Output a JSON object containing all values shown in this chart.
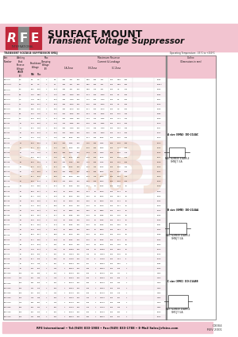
{
  "title": "SURFACE MOUNT",
  "subtitle": "Transient Voltage Suppressor",
  "header_bg": "#f2c4d0",
  "footer_text": "RFE International • Tel:(949) 833-1988 • Fax:(949) 833-1788 • E-Mail Sales@rfeinc.com",
  "footer_right1": "C3004",
  "footer_right2": "REV 2001",
  "note_text": "Operating Temperature: -55°C to +150°C",
  "outline_text": "Outline\n(Dimensions in mm)",
  "part_a_label": "A size (SMA)  DO-214AC",
  "part_b_label": "B size (SMB)  DO-214AA",
  "part_c_label": "C size (SMC)  DO-214AB",
  "part_example_label": "PART NUMBER EXAMPLE",
  "part_a_example": "SMBJ7.5A",
  "part_b_example": "SMBJ7.5A",
  "part_c_example": "SMCJ7.5A",
  "bg": "#ffffff",
  "pink": "#f2c4d0",
  "table_title": "TRANSIENT VOLTAGE SUPPRESSOR SMAJ",
  "col_header_pink": "#f2c4d0",
  "rows": [
    [
      "SMAJ5.0",
      "5.0",
      "5.8",
      "7.0",
      "1",
      "9.6",
      "285",
      "800",
      "300",
      "8.55",
      "280",
      "800",
      "300",
      "6.63",
      "280",
      "520",
      "0005"
    ],
    [
      "SMAJ5.0A",
      "5.0",
      "5.8",
      "7.0",
      "1",
      "9.2",
      "285",
      "800",
      "300",
      "8.55",
      "280",
      "800",
      "300",
      "6.63",
      "280",
      "520",
      "0005A"
    ],
    [
      "SMAJ6.0",
      "6.0",
      "6.67",
      "8.15",
      "1",
      "10.3",
      "285",
      "960",
      "300",
      "9.58",
      "270",
      "960",
      "300",
      "7.5",
      "270",
      "625",
      "0006"
    ],
    [
      "SMAJ6.5",
      "6.5",
      "7.22",
      "8.82",
      "1",
      "11.2",
      "285",
      "1050",
      "300",
      "10.4",
      "265",
      "1050",
      "300",
      "8.1",
      "265",
      "680",
      "0065"
    ],
    [
      "SMAJ7.0",
      "7.0",
      "7.78",
      "9.51",
      "1",
      "12.0",
      "285",
      "1120",
      "300",
      "11.2",
      "260",
      "1120",
      "300",
      "8.7",
      "260",
      "730",
      "0007"
    ],
    [
      "SMAJ7.5",
      "7.5",
      "8.33",
      "10.2",
      "1",
      "12.9",
      "285",
      "1200",
      "300",
      "12.0",
      "255",
      "1200",
      "300",
      "9.4",
      "255",
      "785",
      "0075"
    ],
    [
      "SMAJ8.0",
      "8.0",
      "8.89",
      "10.9",
      "1",
      "13.6",
      "280",
      "1270",
      "300",
      "12.7",
      "250",
      "1270",
      "300",
      "9.9",
      "250",
      "835",
      "0008"
    ],
    [
      "SMAJ8.5",
      "8.5",
      "9.44",
      "11.6",
      "1",
      "14.4",
      "260",
      "1345",
      "300",
      "13.4",
      "245",
      "1345",
      "300",
      "10.5",
      "245",
      "890",
      "0085"
    ],
    [
      "SMAJ9.0",
      "9.0",
      "10.0",
      "12.3",
      "1",
      "15.4",
      "260",
      "1435",
      "300",
      "14.3",
      "240",
      "1435",
      "300",
      "11.1",
      "240",
      "945",
      "0009"
    ],
    [
      "SMAJ10",
      "10",
      "11.1",
      "13.6",
      "1",
      "17.0",
      "240",
      "1585",
      "300",
      "15.8",
      "225",
      "1585",
      "300",
      "12.3",
      "225",
      "1050",
      "0010"
    ],
    [
      "SMAJ11",
      "11",
      "12.2",
      "14.9",
      "1",
      "18.2",
      "230",
      "1700",
      "300",
      "17.0",
      "215",
      "1700",
      "300",
      "13.2",
      "215",
      "1150",
      "0011"
    ],
    [
      "SMAJ12",
      "12",
      "13.3",
      "16.3",
      "1",
      "19.9",
      "220",
      "1860",
      "300",
      "18.5",
      "205",
      "1860",
      "300",
      "14.4",
      "205",
      "1255",
      "0012"
    ],
    [
      "SMAJ13",
      "13",
      "14.4",
      "17.6",
      "1",
      "21.5",
      "210",
      "2005",
      "300",
      "20.1",
      "195",
      "2005",
      "300",
      "15.6",
      "195",
      "1360",
      "0013"
    ],
    [
      "SMAJ14",
      "14",
      "15.6",
      "19.1",
      "1",
      "23.2",
      "200",
      "2165",
      "300",
      "21.6",
      "190",
      "2165",
      "300",
      "16.8",
      "190",
      "1465",
      "0014"
    ],
    [
      "SMAJ15",
      "15",
      "16.7",
      "20.4",
      "1",
      "24.4",
      "195",
      "2280",
      "300",
      "22.8",
      "185",
      "2280",
      "300",
      "17.7",
      "185",
      "1550",
      "0015"
    ],
    [
      "SMAJ16",
      "16",
      "17.8",
      "21.8",
      "1",
      "26.0",
      "180",
      "2430",
      "300",
      "24.3",
      "175",
      "2430",
      "300",
      "18.9",
      "175",
      "1655",
      "0016"
    ],
    [
      "SMAJ17",
      "17",
      "18.9",
      "23.1",
      "1",
      "27.6",
      "165",
      "2575",
      "300",
      "25.8",
      "165",
      "2575",
      "300",
      "20.0",
      "165",
      "1755",
      "0017"
    ],
    [
      "SMAJ18",
      "18",
      "20.0",
      "24.4",
      "1",
      "29.2",
      "160",
      "2725",
      "300",
      "27.2",
      "155",
      "2725",
      "300",
      "21.2",
      "155",
      "1855",
      "0018"
    ],
    [
      "SMAJ20",
      "20",
      "22.2",
      "27.1",
      "1",
      "32.4",
      "145",
      "3025",
      "300",
      "30.2",
      "140",
      "3025",
      "300",
      "23.5",
      "140",
      "2060",
      "0020"
    ],
    [
      "SMAJ22",
      "22",
      "24.4",
      "29.8",
      "1",
      "35.5",
      "130",
      "3315",
      "300",
      "33.1",
      "125",
      "3315",
      "300",
      "25.8",
      "125",
      "2260",
      "0022"
    ],
    [
      "SMAJ24",
      "24",
      "26.7",
      "32.6",
      "1",
      "38.9",
      "115",
      "3630",
      "300",
      "36.2",
      "115",
      "3630",
      "300",
      "28.2",
      "115",
      "2465",
      "0024"
    ],
    [
      "SMAJ26",
      "26",
      "28.9",
      "35.3",
      "1",
      "42.1",
      "105",
      "3930",
      "300",
      "39.2",
      "105",
      "3930",
      "300",
      "30.5",
      "105",
      "2670",
      "0026"
    ],
    [
      "SMAJ28",
      "28",
      "31.1",
      "38.0",
      "1",
      "45.4",
      "95",
      "4235",
      "300",
      "42.2",
      "95",
      "4235",
      "300",
      "32.9",
      "95",
      "2875",
      "0028"
    ],
    [
      "SMAJ30",
      "30",
      "33.3",
      "40.7",
      "1",
      "48.4",
      "90",
      "4520",
      "300",
      "45.1",
      "85",
      "4520",
      "300",
      "35.1",
      "85",
      "3075",
      "0030"
    ],
    [
      "SMAJ33",
      "33",
      "36.7",
      "44.9",
      "1",
      "53.3",
      "80",
      "4975",
      "300",
      "49.6",
      "75",
      "4975",
      "300",
      "38.7",
      "75",
      "3385",
      "0033"
    ],
    [
      "SMAJ36",
      "36",
      "40.0",
      "48.9",
      "1",
      "58.1",
      "75",
      "5420",
      "300",
      "54.0",
      "65",
      "5420",
      "300",
      "42.1",
      "65",
      "3690",
      "0036"
    ],
    [
      "SMAJ40",
      "40",
      "44.4",
      "54.3",
      "1",
      "64.5",
      "65",
      "6020",
      "300",
      "60.0",
      "60",
      "6020",
      "300",
      "46.7",
      "60",
      "4095",
      "0040"
    ],
    [
      "SMAJ43",
      "43",
      "47.8",
      "58.4",
      "1",
      "69.4",
      "60",
      "6480",
      "300",
      "64.5",
      "55",
      "6480",
      "300",
      "50.2",
      "55",
      "4405",
      "0043"
    ],
    [
      "SMAJ45",
      "45",
      "50.0",
      "61.1",
      "1",
      "72.7",
      "55",
      "6785",
      "300",
      "67.5",
      "50",
      "6785",
      "300",
      "52.6",
      "50",
      "4610",
      "0045"
    ],
    [
      "SMAJ48",
      "48",
      "53.3",
      "65.2",
      "1",
      "77.5",
      "50",
      "7235",
      "300",
      "72.0",
      "45",
      "7235",
      "300",
      "56.1",
      "45",
      "4915",
      "0048"
    ],
    [
      "SMAJ51",
      "51",
      "56.7",
      "69.3",
      "1",
      "82.4",
      "45",
      "7695",
      "300",
      "76.5",
      "40",
      "7695",
      "300",
      "59.6",
      "40",
      "5225",
      "0051"
    ],
    [
      "SMAJ54",
      "54",
      "60.0",
      "73.3",
      "1",
      "87.2",
      "40",
      "8140",
      "300",
      "81.0",
      "35",
      "8140",
      "300",
      "63.1",
      "35",
      "5530",
      "0054"
    ],
    [
      "SMAJ58",
      "58",
      "64.4",
      "78.7",
      "1",
      "93.6",
      "35",
      "8740",
      "300",
      "87.0",
      "30",
      "8740",
      "300",
      "67.8",
      "30",
      "5940",
      "0058"
    ],
    [
      "SMAJ60",
      "60",
      "66.7",
      "81.5",
      "1",
      "96.8",
      "30",
      "9035",
      "300",
      "90.0",
      "25",
      "9035",
      "300",
      "70.1",
      "25",
      "6145",
      "0060"
    ],
    [
      "SMAJ64",
      "64",
      "71.1",
      "86.9",
      "1",
      "103",
      "25",
      "9620",
      "300",
      "96.0",
      "20",
      "9620",
      "300",
      "74.8",
      "20",
      "6555",
      "0064"
    ],
    [
      "SMAJ70",
      "70",
      "77.8",
      "95.1",
      "1",
      "113",
      "20",
      "10550",
      "300",
      "105",
      "15",
      "10550",
      "300",
      "81.9",
      "15",
      "7175",
      "0070"
    ],
    [
      "SMAJ75",
      "75",
      "83.3",
      "102",
      "1",
      "121",
      "15",
      "11300",
      "300",
      "113",
      "10",
      "11300",
      "300",
      "87.8",
      "10",
      "7690",
      "0075"
    ],
    [
      "SMAJ78",
      "78",
      "86.7",
      "106",
      "1",
      "126",
      "10",
      "11750",
      "300",
      "117",
      "5",
      "11750",
      "300",
      "91.4",
      "5",
      "8005",
      "0078"
    ],
    [
      "SMAJ85",
      "85",
      "94.4",
      "115",
      "1",
      "137",
      "5",
      "12800",
      "300",
      "127",
      "1",
      "12800",
      "300",
      "99.5",
      "1",
      "8715",
      "0085"
    ],
    [
      "SMAJ90",
      "90",
      "100",
      "122",
      "1",
      "146",
      "1",
      "13600",
      "300",
      "135",
      "1",
      "13600",
      "300",
      "105",
      "1",
      "9235",
      "0090"
    ],
    [
      "SMAJ100",
      "100",
      "111",
      "136",
      "1",
      "162",
      "1",
      "15100",
      "300",
      "150",
      "1",
      "15100",
      "300",
      "117",
      "1",
      "10250",
      "0100"
    ],
    [
      "SMAJ110",
      "110",
      "122",
      "149",
      "1",
      "178",
      "1",
      "16600",
      "300",
      "165",
      "1",
      "16600",
      "300",
      "129",
      "1",
      "11275",
      "0110"
    ],
    [
      "SMAJ120",
      "120",
      "133",
      "163",
      "1",
      "194",
      "1",
      "18100",
      "300",
      "180",
      "1",
      "18100",
      "300",
      "140",
      "1",
      "12295",
      "0120"
    ],
    [
      "SMAJ130",
      "130",
      "144",
      "176",
      "1",
      "209",
      "1",
      "19500",
      "300",
      "195",
      "1",
      "19500",
      "300",
      "152",
      "1",
      "13315",
      "0130"
    ],
    [
      "SMAJ150",
      "150",
      "167",
      "204",
      "1",
      "243",
      "1",
      "22700",
      "300",
      "225",
      "1",
      "22700",
      "300",
      "175",
      "1",
      "15365",
      "0150"
    ],
    [
      "SMAJ160",
      "160",
      "178",
      "218",
      "1",
      "259",
      "1",
      "24200",
      "300",
      "240",
      "1",
      "24200",
      "300",
      "187",
      "1",
      "16385",
      "0160"
    ],
    [
      "SMAJ170",
      "170",
      "189",
      "231",
      "1",
      "275",
      "1",
      "25700",
      "300",
      "255",
      "1",
      "25700",
      "300",
      "198",
      "1",
      "17390",
      "0170"
    ],
    [
      "SMAJ180",
      "180",
      "200",
      "244",
      "1",
      "291",
      "1",
      "27100",
      "300",
      "270",
      "1",
      "27100",
      "300",
      "210",
      "1",
      "18400",
      "0180"
    ],
    [
      "SMAJ200",
      "200",
      "222",
      "272",
      "1",
      "324",
      "1",
      "30200",
      "300",
      "300",
      "1",
      "30200",
      "300",
      "234",
      "1",
      "20440",
      "0200"
    ],
    [
      "SMAJ220",
      "220",
      "244",
      "298",
      "1",
      "356",
      "1",
      "33200",
      "300",
      "330",
      "1",
      "33200",
      "300",
      "257",
      "1",
      "22455",
      "0220"
    ]
  ]
}
